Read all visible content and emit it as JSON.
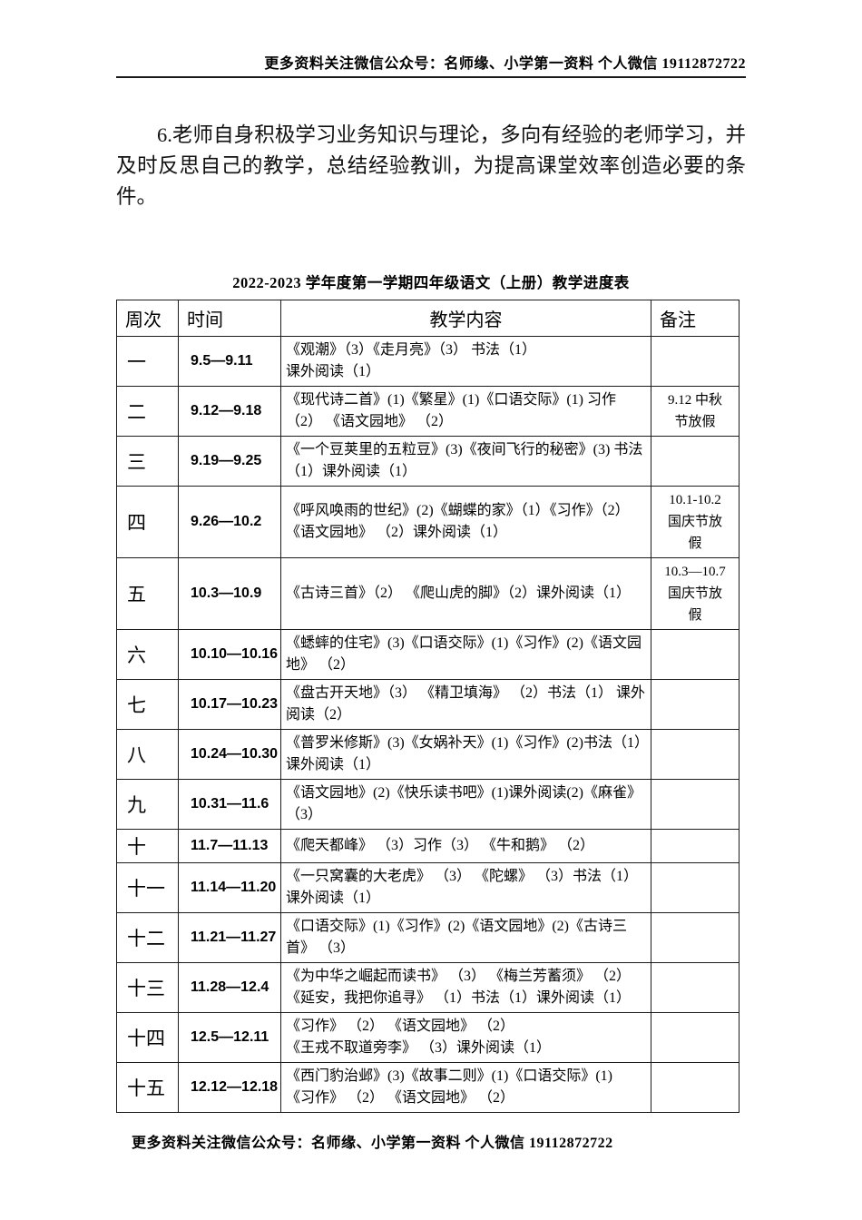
{
  "page": {
    "header_note": "更多资料关注微信公众号：名师缘、小学第一资料  个人微信 19112872722",
    "footer_note": "更多资料关注微信公众号：名师缘、小学第一资料  个人微信 19112872722",
    "paragraph": "6.老师自身积极学习业务知识与理论，多向有经验的老师学习，并及时反思自己的教学，总结经验教训，为提高课堂效率创造必要的条件。"
  },
  "table": {
    "title": "2022-2023 学年度第一学期四年级语文（上册）教学进度表",
    "columns": [
      "周次",
      "时间",
      "教学内容",
      "备注"
    ],
    "rows": [
      {
        "week": "一",
        "time": "9.5—9.11",
        "content": "《观潮》（3）《走月亮》（3） 书法（1）\n课外阅读（1）",
        "remark": ""
      },
      {
        "week": "二",
        "time": "9.12—9.18",
        "content": "《现代诗二首》(1)《繁星》(1)《口语交际》(1) 习作（2） 《语文园地》 （2）",
        "remark": "9.12 中秋\n节放假"
      },
      {
        "week": "三",
        "time": "9.19—9.25",
        "content": "《一个豆荚里的五粒豆》(3)《夜间飞行的秘密》(3) 书法（1）课外阅读（1）",
        "remark": ""
      },
      {
        "week": "四",
        "time": "9.26—10.2",
        "content": "《呼风唤雨的世纪》(2)《蝴蝶的家》（1）《习作》（2） 《语文园地》 （2）课外阅读（1）",
        "remark": "10.1-10.2\n国庆节放\n假"
      },
      {
        "week": "五",
        "time": "10.3—10.9",
        "content": "《古诗三首》（2） 《爬山虎的脚》（2）课外阅读（1）",
        "remark": "10.3—10.7\n国庆节放\n假"
      },
      {
        "week": "六",
        "time": "10.10—10.16",
        "content": "《蟋蟀的住宅》(3)《口语交际》(1)《习作》(2)《语文园地》 （2）",
        "remark": ""
      },
      {
        "week": "七",
        "time": "10.17—10.23",
        "content": "《盘古开天地》（3） 《精卫填海》 （2）书法（1） 课外阅读（2）",
        "remark": ""
      },
      {
        "week": "八",
        "time": "10.24—10.30",
        "content": "《普罗米修斯》(3)《女娲补天》(1)《习作》(2)书法（1）课外阅读（1）",
        "remark": ""
      },
      {
        "week": "九",
        "time": "10.31—11.6",
        "content": "《语文园地》(2)《快乐读书吧》(1)课外阅读(2)《麻雀》 （3）",
        "remark": ""
      },
      {
        "week": "十",
        "time": "11.7—11.13",
        "content": "《爬天都峰》 （3）习作（3） 《牛和鹅》 （2）",
        "remark": ""
      },
      {
        "week": "十一",
        "time": "11.14—11.20",
        "content": "《一只窝囊的大老虎》 （3） 《陀螺》 （3）书法（1）课外阅读（1）",
        "remark": ""
      },
      {
        "week": "十二",
        "time": "11.21—11.27",
        "content": "《口语交际》(1)《习作》(2)《语文园地》(2)《古诗三首》 （3）",
        "remark": ""
      },
      {
        "week": "十三",
        "time": "11.28—12.4",
        "content": "《为中华之崛起而读书》 （3） 《梅兰芳蓄须》 （2）《延安，我把你追寻》 （1）书法（1）课外阅读（1）",
        "remark": ""
      },
      {
        "week": "十四",
        "time": "12.5—12.11",
        "content": "《习作》 （2） 《语文园地》 （2）\n《王戎不取道旁李》 （3）课外阅读（1）",
        "remark": ""
      },
      {
        "week": "十五",
        "time": "12.12—12.18",
        "content": "《西门豹治邺》(3)《故事二则》(1)《口语交际》(1)\n《习作》 （2） 《语文园地》 （2）",
        "remark": ""
      }
    ]
  }
}
